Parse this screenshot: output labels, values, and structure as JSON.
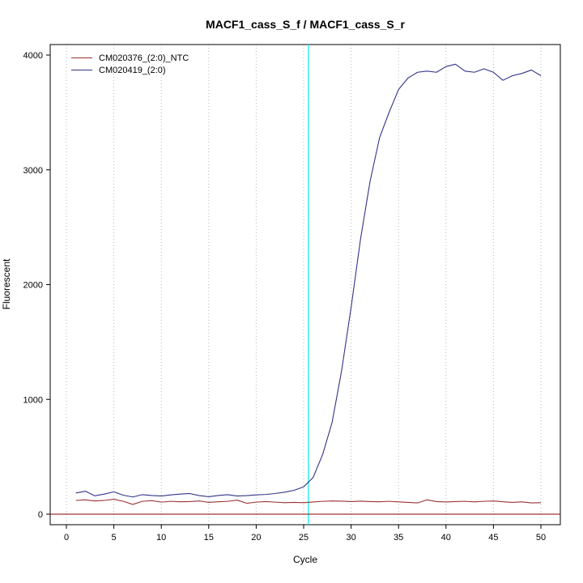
{
  "chart_data": {
    "type": "line",
    "title": "MACF1_cass_S_f / MACF1_cass_S_r",
    "xlabel": "Cycle",
    "ylabel": "Fluorescent",
    "xlim": [
      0,
      50
    ],
    "ylim": [
      0,
      4000
    ],
    "x_ticks": [
      0,
      5,
      10,
      15,
      20,
      25,
      30,
      35,
      40,
      45,
      50
    ],
    "y_ticks": [
      0,
      1000,
      2000,
      3000,
      4000
    ],
    "grid": "vertical-dotted",
    "legend_position": "top-left",
    "threshold_line_y": 0,
    "ct_marker_x": 25.5,
    "colors": {
      "ntc_series": "#993333",
      "sample_series": "#333388",
      "threshold_line": "#8B0000",
      "ct_marker": "#00EEEE",
      "grid_line": "#b8b8b8",
      "axis": "#000000"
    },
    "x": [
      1,
      2,
      3,
      4,
      5,
      6,
      7,
      8,
      9,
      10,
      11,
      12,
      13,
      14,
      15,
      16,
      17,
      18,
      19,
      20,
      21,
      22,
      23,
      24,
      25,
      26,
      27,
      28,
      29,
      30,
      31,
      32,
      33,
      34,
      35,
      36,
      37,
      38,
      39,
      40,
      41,
      42,
      43,
      44,
      45,
      46,
      47,
      48,
      49,
      50
    ],
    "series": [
      {
        "name": "CM020376_(2:0)_NTC",
        "values": [
          120,
          125,
          115,
          120,
          130,
          112,
          85,
          112,
          118,
          105,
          112,
          108,
          110,
          115,
          103,
          108,
          112,
          122,
          95,
          105,
          110,
          105,
          100,
          103,
          100,
          106,
          112,
          115,
          113,
          110,
          113,
          110,
          108,
          112,
          107,
          103,
          98,
          125,
          110,
          106,
          110,
          112,
          107,
          112,
          115,
          108,
          103,
          107,
          98,
          100
        ]
      },
      {
        "name": "CM020419_(2:0)",
        "values": [
          185,
          200,
          160,
          175,
          195,
          165,
          150,
          170,
          163,
          158,
          168,
          175,
          180,
          162,
          152,
          163,
          170,
          158,
          162,
          168,
          172,
          180,
          192,
          208,
          238,
          320,
          520,
          800,
          1250,
          1800,
          2400,
          2900,
          3280,
          3500,
          3700,
          3800,
          3850,
          3860,
          3850,
          3900,
          3920,
          3860,
          3850,
          3880,
          3850,
          3780,
          3820,
          3840,
          3870,
          3820
        ]
      }
    ]
  }
}
